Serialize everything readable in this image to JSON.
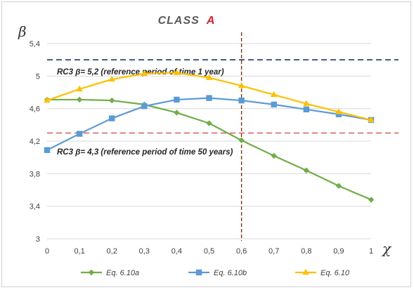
{
  "chart_data": {
    "type": "line",
    "title": "CLASS",
    "title_accent": "A",
    "ylabel": "β",
    "xlabel": "χ",
    "x": [
      0,
      0.1,
      0.2,
      0.3,
      0.4,
      0.5,
      0.6,
      0.7,
      0.8,
      0.9,
      1
    ],
    "x_tick_labels": [
      "0",
      "0,1",
      "0,2",
      "0,3",
      "0,4",
      "0,5",
      "0,6",
      "0,7",
      "0,8",
      "0,9",
      "1"
    ],
    "ylim": [
      3,
      5.4
    ],
    "y_ticks": [
      3,
      3.4,
      3.8,
      4.2,
      4.6,
      5,
      5.4
    ],
    "y_tick_labels": [
      "3",
      "3,4",
      "3,8",
      "4,2",
      "4,6",
      "5",
      "5,4"
    ],
    "grid": "horizontal",
    "legend_position": "bottom",
    "series": [
      {
        "name": "Eq. 6.10a",
        "color": "#70ad47",
        "marker": "diamond",
        "values": [
          4.71,
          4.71,
          4.7,
          4.65,
          4.55,
          4.42,
          4.21,
          4.02,
          3.84,
          3.65,
          3.48
        ]
      },
      {
        "name": "Eq. 6.10b",
        "color": "#5b9bd5",
        "marker": "square",
        "values": [
          4.09,
          4.29,
          4.48,
          4.63,
          4.71,
          4.73,
          4.7,
          4.65,
          4.59,
          4.53,
          4.46
        ]
      },
      {
        "name": "Eq. 6.10",
        "color": "#ffc000",
        "marker": "triangle",
        "values": [
          4.7,
          4.84,
          4.96,
          5.03,
          5.04,
          4.98,
          4.88,
          4.77,
          4.66,
          4.56,
          4.46
        ]
      }
    ],
    "reference_lines": [
      {
        "y": 5.2,
        "color": "#1f3864",
        "label": "RC3 β= 5,2 (reference period of time 1 year)"
      },
      {
        "y": 4.3,
        "color": "#e06666",
        "label": "RC3 β= 4,3 (reference period of time 50 years)"
      }
    ],
    "vertical_line": {
      "x": 0.6,
      "color": "#8b2500"
    }
  }
}
